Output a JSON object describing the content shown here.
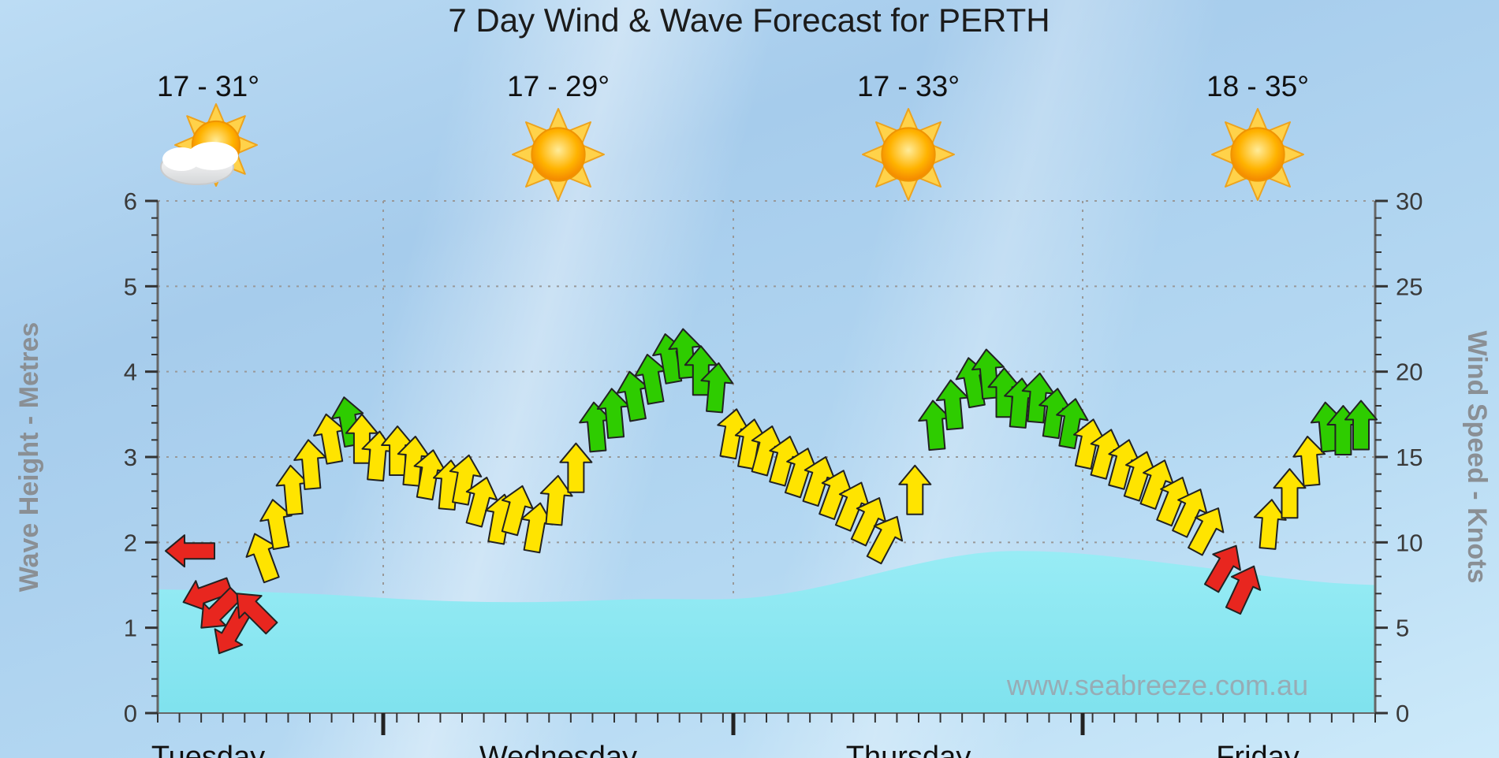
{
  "title": "7 Day Wind & Wave Forecast for PERTH",
  "watermark": "www.seabreeze.com.au",
  "days": [
    {
      "label": "Tuesday",
      "temp": "17 - 31°",
      "icon": "sun-cloud"
    },
    {
      "label": "Wednesday",
      "temp": "17 - 29°",
      "icon": "sun"
    },
    {
      "label": "Thursday",
      "temp": "17 - 33°",
      "icon": "sun"
    },
    {
      "label": "Friday",
      "temp": "18 - 35°",
      "icon": "sun"
    }
  ],
  "axes": {
    "left_label": "Wave Height - Metres",
    "right_label": "Wind Speed - Knots",
    "left_ticks": [
      0,
      1,
      2,
      3,
      4,
      5,
      6
    ],
    "right_ticks": [
      0,
      5,
      10,
      15,
      20,
      25,
      30
    ],
    "left_range": [
      0,
      6
    ],
    "right_range": [
      0,
      30
    ]
  },
  "chart_data": {
    "type": "line",
    "title": "7 Day Wind & Wave Forecast for PERTH",
    "x_days": [
      "Tuesday",
      "Wednesday",
      "Thursday",
      "Friday"
    ],
    "grid": "dotted",
    "series": [
      {
        "name": "Wind Speed",
        "units": "knots",
        "axis": "right",
        "ylim": [
          0,
          30
        ],
        "marker": "direction-arrow",
        "color_rule": {
          "red": "< 10 kn",
          "yellow": "10 - 18 kn",
          "green": ">= 18 kn"
        },
        "values": [
          9.5,
          6.5,
          5.0,
          3.5,
          7.0,
          10.5,
          12.5,
          14.5,
          16.0,
          17.5,
          18.5,
          17.5,
          16.5,
          16.8,
          16.2,
          15.4,
          14.8,
          15.1,
          13.8,
          12.8,
          13.3,
          12.3,
          13.9,
          15.8,
          18.2,
          19.0,
          20.0,
          21.0,
          22.2,
          22.5,
          21.5,
          20.5,
          17.8,
          17.2,
          16.8,
          16.2,
          15.5,
          15.0,
          14.2,
          13.5,
          12.6,
          11.5,
          14.5,
          18.3,
          19.5,
          20.8,
          21.3,
          20.2,
          19.6,
          19.9,
          19.0,
          18.4,
          17.2,
          16.6,
          16.0,
          15.3,
          14.8,
          13.8,
          13.1,
          12.0,
          9.8,
          8.6,
          12.5,
          14.3,
          16.2,
          18.2,
          18.0,
          18.3
        ],
        "directions_deg": [
          -90,
          -110,
          -135,
          -150,
          -45,
          -20,
          -10,
          -5,
          -5,
          -10,
          -10,
          0,
          5,
          0,
          5,
          10,
          5,
          10,
          15,
          10,
          15,
          10,
          5,
          0,
          -5,
          -5,
          -10,
          -10,
          -10,
          -5,
          0,
          5,
          10,
          10,
          15,
          15,
          18,
          18,
          20,
          22,
          25,
          28,
          0,
          -5,
          -5,
          -10,
          -5,
          0,
          5,
          5,
          8,
          10,
          12,
          15,
          15,
          18,
          20,
          22,
          25,
          28,
          30,
          25,
          5,
          0,
          -5,
          -5,
          0,
          0
        ]
      },
      {
        "name": "Wave Height",
        "units": "metres",
        "axis": "left",
        "ylim": [
          0,
          6
        ],
        "values": [
          1.45,
          1.44,
          1.43,
          1.41,
          1.39,
          1.36,
          1.33,
          1.31,
          1.3,
          1.3,
          1.31,
          1.33,
          1.34,
          1.33,
          1.34,
          1.4,
          1.5,
          1.62,
          1.74,
          1.84,
          1.9,
          1.9,
          1.87,
          1.82,
          1.76,
          1.7,
          1.63,
          1.57,
          1.52,
          1.5
        ]
      }
    ]
  },
  "colors": {
    "arrow_red": "#e8261f",
    "arrow_yellow": "#ffe400",
    "arrow_green": "#2ecc00",
    "arrow_outline": "#222222",
    "wave_fill_top": "#98ecf5",
    "wave_fill_bottom": "#7fe2ee",
    "grid": "#999999",
    "axis_line": "#666666",
    "sky_top": "#a6ccec",
    "sky_bottom": "#cdeafa"
  }
}
